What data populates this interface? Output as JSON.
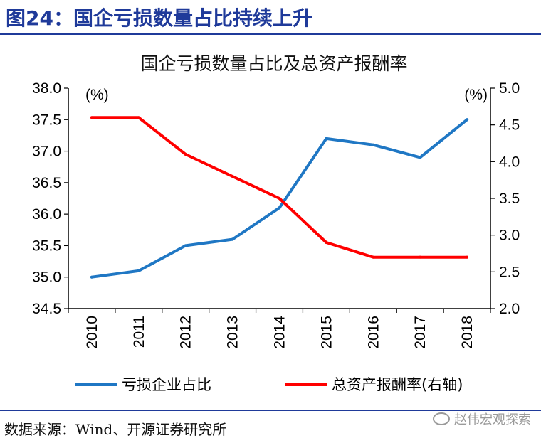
{
  "header": {
    "title": "图24：国企亏损数量占比持续上升"
  },
  "source": {
    "text": "数据来源：Wind、开源证券研究所"
  },
  "watermark": {
    "text": "赵伟宏观探索"
  },
  "colors": {
    "brand": "#1f3a9a",
    "series_blue": "#1f77c4",
    "series_red": "#ff0000"
  },
  "chart_data": {
    "type": "line",
    "title": "国企亏损数量占比及总资产报酬率",
    "categories": [
      "2010",
      "2011",
      "2012",
      "2013",
      "2014",
      "2015",
      "2016",
      "2017",
      "2018"
    ],
    "y_left": {
      "unit": "(%)",
      "ylim": [
        34.5,
        38.0
      ],
      "ticks": [
        "34.5",
        "35.0",
        "35.5",
        "36.0",
        "36.5",
        "37.0",
        "37.5",
        "38.0"
      ]
    },
    "y_right": {
      "unit": "(%)",
      "ylim": [
        2.0,
        5.0
      ],
      "ticks": [
        "2.0",
        "2.5",
        "3.0",
        "3.5",
        "4.0",
        "4.5",
        "5.0"
      ]
    },
    "series": [
      {
        "name": "亏损企业占比",
        "axis": "left",
        "color": "#1f77c4",
        "values": [
          35.0,
          35.1,
          35.5,
          35.6,
          36.1,
          37.2,
          37.1,
          36.9,
          37.5
        ]
      },
      {
        "name": "总资产报酬率(右轴)",
        "axis": "right",
        "color": "#ff0000",
        "values": [
          4.6,
          4.6,
          4.1,
          3.8,
          3.5,
          2.9,
          2.7,
          2.7,
          2.7
        ]
      }
    ],
    "legend": "bottom",
    "grid": false
  }
}
